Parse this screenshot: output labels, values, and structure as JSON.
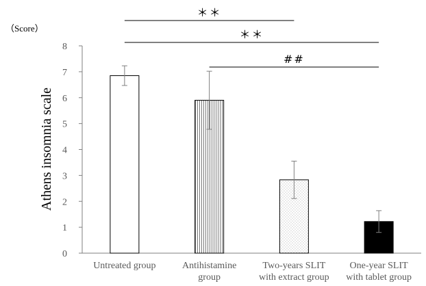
{
  "chart_data": {
    "type": "bar",
    "title": "",
    "xlabel": "",
    "ylabel": "Athens insomnia scale",
    "unit_label": "（Score）",
    "ylim": [
      0,
      8
    ],
    "yticks": [
      0,
      1,
      2,
      3,
      4,
      5,
      6,
      7,
      8
    ],
    "grid": false,
    "legend": "none",
    "categories": [
      [
        "Untreated group"
      ],
      [
        "Antihistamine",
        "group"
      ],
      [
        "Two-years SLIT",
        "with extract group"
      ],
      [
        "One-year SLIT",
        "with tablet group"
      ]
    ],
    "values": [
      6.85,
      5.9,
      2.83,
      1.22
    ],
    "errors": [
      0.38,
      1.12,
      0.72,
      0.42
    ],
    "fills": [
      "white",
      "vertical-stripes",
      "dots",
      "black"
    ],
    "significance": [
      {
        "label": "＊＊",
        "from": 0,
        "to": 2
      },
      {
        "label": "＊＊",
        "from": 0,
        "to": 3
      },
      {
        "label": "##",
        "from": 1,
        "to": 3
      }
    ]
  }
}
